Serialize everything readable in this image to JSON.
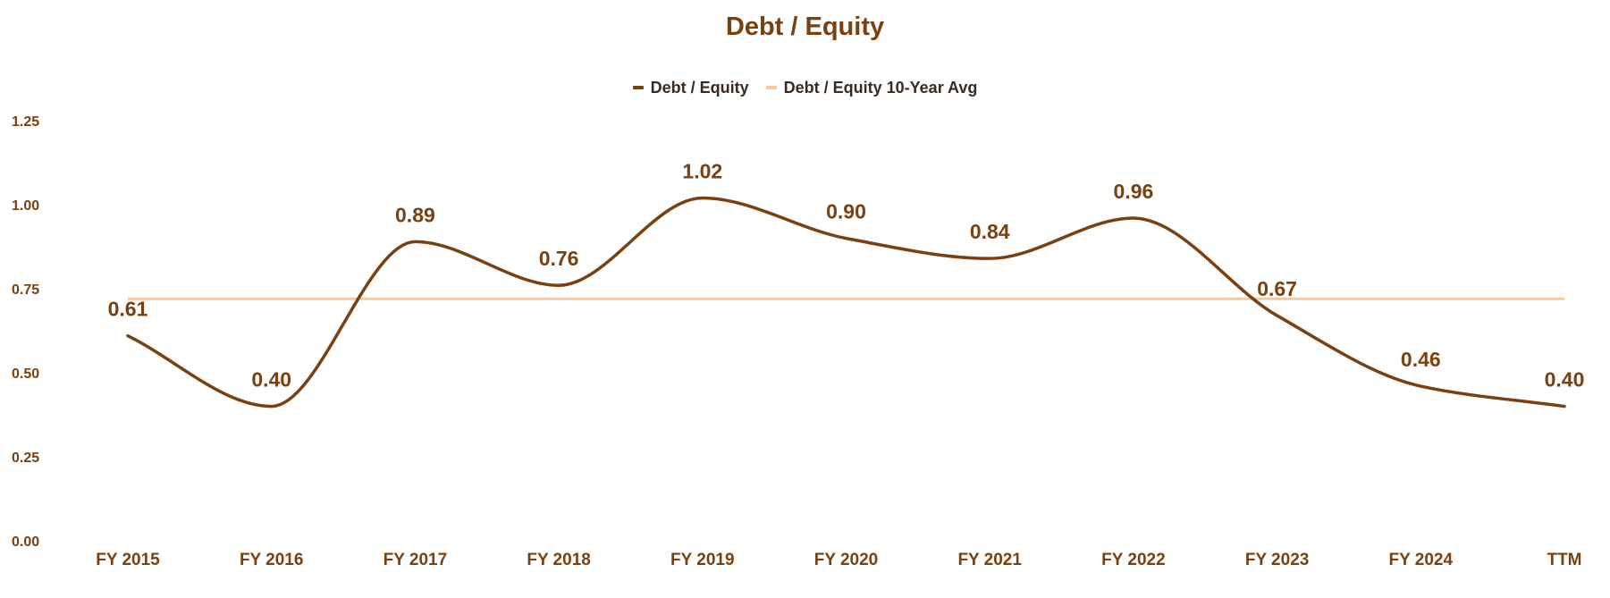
{
  "chart_data": {
    "type": "line",
    "title": "Debt / Equity",
    "categories": [
      "FY 2015",
      "FY 2016",
      "FY 2017",
      "FY 2018",
      "FY 2019",
      "FY 2020",
      "FY 2021",
      "FY 2022",
      "FY 2023",
      "FY 2024",
      "TTM"
    ],
    "series": [
      {
        "name": "Debt / Equity",
        "values": [
          0.61,
          0.4,
          0.89,
          0.76,
          1.02,
          0.9,
          0.84,
          0.96,
          0.67,
          0.46,
          0.4
        ],
        "labels": [
          "0.61",
          "0.40",
          "0.89",
          "0.76",
          "1.02",
          "0.90",
          "0.84",
          "0.96",
          "0.67",
          "0.46",
          "0.40"
        ],
        "color": "#7a4010"
      },
      {
        "name": "Debt / Equity 10-Year Avg",
        "value": 0.72,
        "color": "#f8c9a0"
      }
    ],
    "y_ticks": [
      "0.00",
      "0.25",
      "0.50",
      "0.75",
      "1.00",
      "1.25"
    ],
    "ylim": [
      0,
      1.25
    ],
    "xlabel": "",
    "ylabel": "",
    "grid": false,
    "legend_position": "top-center"
  }
}
